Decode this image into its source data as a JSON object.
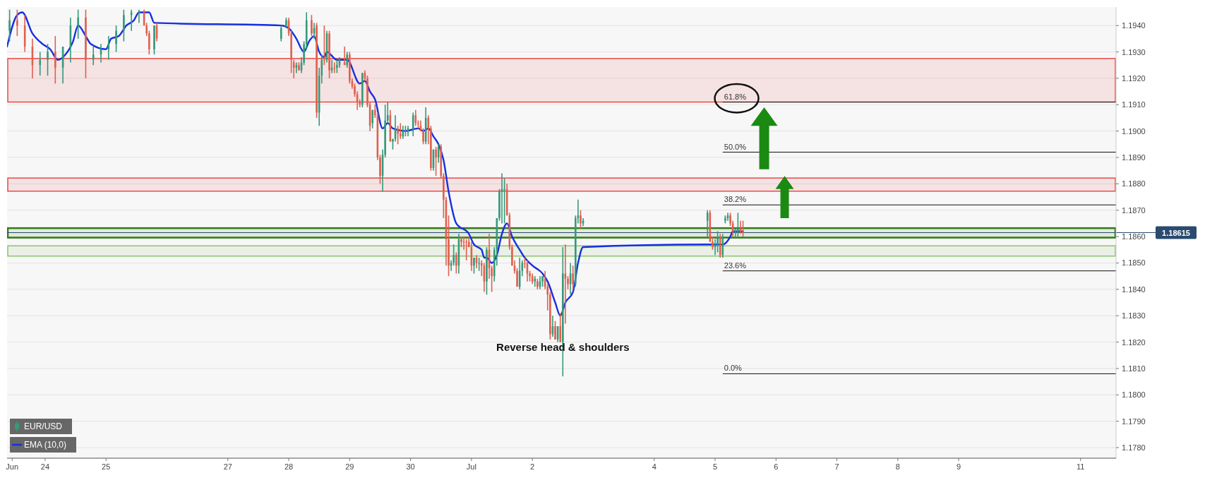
{
  "chart_data": {
    "type": "candlestick",
    "legend": "bottom left",
    "grid": "y",
    "xlim": [
      "--06-23T09:00",
      "--07-11T14:00"
    ],
    "ylim": [
      1.1776,
      1.1947
    ],
    "xticks": [
      {
        "value": "--06-23T11:00",
        "label": "Jun"
      },
      {
        "value": "--06-24",
        "label": "24"
      },
      {
        "value": "--06-25",
        "label": "25"
      },
      {
        "value": "--06-27",
        "label": "27"
      },
      {
        "value": "--06-28",
        "label": "28"
      },
      {
        "value": "--06-29",
        "label": "29"
      },
      {
        "value": "--06-30",
        "label": "30"
      },
      {
        "value": "--07-01",
        "label": "Jul"
      },
      {
        "value": "--07-02",
        "label": "2"
      },
      {
        "value": "--07-04",
        "label": "4"
      },
      {
        "value": "--07-05",
        "label": "5"
      },
      {
        "value": "--07-06",
        "label": "6"
      },
      {
        "value": "--07-07",
        "label": "7"
      },
      {
        "value": "--07-08",
        "label": "8"
      },
      {
        "value": "--07-09",
        "label": "9"
      },
      {
        "value": "--07-11",
        "label": "11"
      }
    ],
    "yticks": [
      {
        "value": 1.178,
        "label": "1.1780"
      },
      {
        "value": 1.179,
        "label": "1.1790"
      },
      {
        "value": 1.18,
        "label": "1.1800"
      },
      {
        "value": 1.181,
        "label": "1.1810"
      },
      {
        "value": 1.182,
        "label": "1.1820"
      },
      {
        "value": 1.183,
        "label": "1.1830"
      },
      {
        "value": 1.184,
        "label": "1.1840"
      },
      {
        "value": 1.185,
        "label": "1.1850"
      },
      {
        "value": 1.186,
        "label": "1.1860"
      },
      {
        "value": 1.187,
        "label": "1.1870"
      },
      {
        "value": 1.188,
        "label": "1.1880"
      },
      {
        "value": 1.189,
        "label": "1.1890"
      },
      {
        "value": 1.19,
        "label": "1.1900"
      },
      {
        "value": 1.191,
        "label": "1.1910"
      },
      {
        "value": 1.192,
        "label": "1.1920"
      },
      {
        "value": 1.193,
        "label": "1.1930"
      },
      {
        "value": 1.194,
        "label": "1.1940"
      }
    ],
    "series": [
      {
        "name": "EUR/USD",
        "colors": [
          "#35997a",
          "#e0604f",
          "#e0604f",
          "#e0604f",
          "#35997a",
          "#35997a",
          "#e0604f",
          "#35997a",
          "#35997a",
          "#35997a",
          "#e0604f",
          "#35997a",
          "#35997a",
          "#35997a",
          "#35997a",
          "#35997a",
          "#35997a",
          "#35997a",
          "#e0604f",
          "#e0604f",
          "#e0604f",
          "#35997a",
          "#e0604f",
          "#35997a",
          "#35997a",
          "#e0604f",
          "#e0604f",
          "#e0604f",
          "#35997a",
          "#e0604f",
          "#35997a",
          "#35997a",
          "#35997a",
          "#e0604f",
          "#35997a",
          "#e0604f",
          "#35997a",
          "#35997a",
          "#e0604f",
          "#35997a",
          "#e0604f",
          "#35997a",
          "#e0604f",
          "#35997a",
          "#35997a",
          "#e0604f",
          "#35997a",
          "#e0604f",
          "#e0604f",
          "#e0604f",
          "#e0604f",
          "#e0604f",
          "#35997a",
          "#e0604f",
          "#e0604f",
          "#e0604f",
          "#35997a",
          "#e0604f",
          "#e0604f",
          "#e0604f",
          "#35997a",
          "#35997a",
          "#35997a",
          "#e0604f",
          "#35997a",
          "#35997a",
          "#e0604f",
          "#e0604f",
          "#35997a",
          "#35997a",
          "#35997a",
          "#35997a",
          "#e0604f",
          "#e0604f",
          "#e0604f",
          "#e0604f",
          "#35997a",
          "#e0604f",
          "#e0604f",
          "#35997a",
          "#e0604f",
          "#35997a",
          "#e0604f",
          "#e0604f",
          "#e0604f",
          "#e0604f",
          "#35997a",
          "#35997a",
          "#e0604f",
          "#35997a",
          "#e0604f",
          "#e0604f",
          "#e0604f",
          "#e0604f",
          "#e0604f",
          "#35997a",
          "#e0604f",
          "#35997a",
          "#e0604f",
          "#e0604f",
          "#35997a",
          "#e0604f",
          "#e0604f",
          "#35997a",
          "#35997a",
          "#35997a",
          "#35997a",
          "#35997a",
          "#e0604f",
          "#e0604f",
          "#e0604f",
          "#e0604f",
          "#e0604f",
          "#35997a",
          "#35997a",
          "#e0604f",
          "#e0604f",
          "#e0604f",
          "#e0604f",
          "#35997a",
          "#e0604f",
          "#35997a",
          "#35997a",
          "#e0604f",
          "#e0604f",
          "#e0604f",
          "#35997a",
          "#e0604f",
          "#35997a",
          "#e0604f",
          "#35997a",
          "#e0604f",
          "#e0604f",
          "#35997a",
          "#e0604f",
          "#35997a",
          "#35997a",
          "#e0604f",
          "#35997a",
          "#35997a",
          "#e0604f",
          "#e0604f",
          "#35997a",
          "#35997a",
          "#e0604f",
          "#35997a",
          "#35997a",
          "#35997a",
          "#e0604f",
          "#e0604f",
          "#35997a",
          "#35997a",
          "#e0604f",
          "#e0604f"
        ],
        "x": [
          "--06-23T10:00",
          "--06-23T13:00",
          "--06-23T16:00",
          "--06-23T19:00",
          "--06-23T22:00",
          "--06-24T01:00",
          "--06-24T04:00",
          "--06-24T07:00",
          "--06-24T10:00",
          "--06-24T13:00",
          "--06-24T16:00",
          "--06-24T19:00",
          "--06-24T22:00",
          "--06-25T01:00",
          "--06-25T04:00",
          "--06-25T07:00",
          "--06-25T10:00",
          "--06-25T13:00",
          "--06-25T15:00",
          "--06-25T16:00",
          "--06-25T17:00",
          "--06-25T19:00",
          "--06-25T20:00",
          "--06-27T21:00",
          "--06-27T23:00",
          "--06-28T00:00",
          "--06-28T01:00",
          "--06-28T02:00",
          "--06-28T03:00",
          "--06-28T04:00",
          "--06-28T05:00",
          "--06-28T06:00",
          "--06-28T07:00",
          "--06-28T09:00",
          "--06-28T10:00",
          "--06-28T11:00",
          "--06-28T12:00",
          "--06-28T13:00",
          "--06-28T14:00",
          "--06-28T15:00",
          "--06-28T16:00",
          "--06-28T17:00",
          "--06-28T18:00",
          "--06-28T19:00",
          "--06-28T20:00",
          "--06-28T22:00",
          "--06-28T23:00",
          "--06-29T00:00",
          "--06-29T01:00",
          "--06-29T02:00",
          "--06-29T03:00",
          "--06-29T04:00",
          "--06-29T05:00",
          "--06-29T06:00",
          "--06-29T07:00",
          "--06-29T08:00",
          "--06-29T09:00",
          "--06-29T10:00",
          "--06-29T11:00",
          "--06-29T12:00",
          "--06-29T13:00",
          "--06-29T14:00",
          "--06-29T15:00",
          "--06-29T16:00",
          "--06-29T17:00",
          "--06-29T18:00",
          "--06-29T19:00",
          "--06-29T20:00",
          "--06-29T21:00",
          "--06-29T22:00",
          "--06-29T23:00",
          "--06-30T01:00",
          "--06-30T02:00",
          "--06-30T03:00",
          "--06-30T04:00",
          "--06-30T05:00",
          "--06-30T06:00",
          "--06-30T07:00",
          "--06-30T08:00",
          "--06-30T09:00",
          "--06-30T10:00",
          "--06-30T11:00",
          "--06-30T12:00",
          "--06-30T13:00",
          "--06-30T14:00",
          "--06-30T15:00",
          "--06-30T16:00",
          "--06-30T17:00",
          "--06-30T18:00",
          "--06-30T19:00",
          "--06-30T20:00",
          "--06-30T21:00",
          "--06-30T22:00",
          "--06-30T23:00",
          "--07-01T00:00",
          "--07-01T01:00",
          "--07-01T02:00",
          "--07-01T03:00",
          "--07-01T04:00",
          "--07-01T05:00",
          "--07-01T06:00",
          "--07-01T07:00",
          "--07-01T08:00",
          "--07-01T09:00",
          "--07-01T10:00",
          "--07-01T11:00",
          "--07-01T12:00",
          "--07-01T13:00",
          "--07-01T14:00",
          "--07-01T15:00",
          "--07-01T16:00",
          "--07-01T17:00",
          "--07-01T18:00",
          "--07-01T19:00",
          "--07-01T20:00",
          "--07-01T21:00",
          "--07-01T22:00",
          "--07-01T23:00",
          "--07-02T00:00",
          "--07-02T01:00",
          "--07-02T02:00",
          "--07-02T03:00",
          "--07-02T04:00",
          "--07-02T05:00",
          "--07-02T06:00",
          "--07-02T07:00",
          "--07-02T08:00",
          "--07-02T09:00",
          "--07-02T10:00",
          "--07-02T11:00",
          "--07-02T12:00",
          "--07-02T13:00",
          "--07-02T14:00",
          "--07-02T15:00",
          "--07-02T16:00",
          "--07-02T17:00",
          "--07-02T18:00",
          "--07-02T19:00",
          "--07-02T20:00",
          "--07-04T21:00",
          "--07-04T22:00",
          "--07-04T23:00",
          "--07-05T00:00",
          "--07-05T01:00",
          "--07-05T02:00",
          "--07-05T03:00",
          "--07-05T04:00",
          "--07-05T05:00",
          "--07-05T06:00",
          "--07-05T07:00",
          "--07-05T08:00",
          "--07-05T09:00",
          "--07-05T10:00",
          "--07-05T11:00"
        ],
        "ohlc": [
          [
            1.1938,
            1.1946,
            1.1934,
            1.1942
          ],
          [
            1.1942,
            1.1946,
            1.1936,
            1.194
          ],
          [
            1.194,
            1.1944,
            1.193,
            1.1932
          ],
          [
            1.1932,
            1.1935,
            1.192,
            1.1925
          ],
          [
            1.1925,
            1.193,
            1.1921,
            1.1927
          ],
          [
            1.1927,
            1.1933,
            1.1921,
            1.193
          ],
          [
            1.193,
            1.1936,
            1.1918,
            1.1924
          ],
          [
            1.1924,
            1.1932,
            1.1918,
            1.1932
          ],
          [
            1.1932,
            1.1943,
            1.1926,
            1.194
          ],
          [
            1.194,
            1.1946,
            1.1935,
            1.1943
          ],
          [
            1.1943,
            1.1946,
            1.192,
            1.1927
          ],
          [
            1.1927,
            1.1932,
            1.1925,
            1.1929
          ],
          [
            1.1929,
            1.1933,
            1.1926,
            1.1931
          ],
          [
            1.1931,
            1.1936,
            1.1927,
            1.1933
          ],
          [
            1.1933,
            1.194,
            1.193,
            1.1938
          ],
          [
            1.1938,
            1.1946,
            1.1934,
            1.1944
          ],
          [
            1.1944,
            1.1946,
            1.1938,
            1.1945
          ],
          [
            1.1945,
            1.1946,
            1.1941,
            1.1945
          ],
          [
            1.1945,
            1.1946,
            1.194,
            1.194
          ],
          [
            1.194,
            1.1941,
            1.1936,
            1.1937
          ],
          [
            1.1937,
            1.1938,
            1.1929,
            1.1931
          ],
          [
            1.1931,
            1.194,
            1.1929,
            1.194
          ],
          [
            1.194,
            1.1941,
            1.1934,
            1.1935
          ],
          [
            1.1935,
            1.194,
            1.1934,
            1.1939
          ],
          [
            1.194,
            1.1943,
            1.1939,
            1.1942
          ],
          [
            1.1942,
            1.1943,
            1.1936,
            1.1937
          ],
          [
            1.1937,
            1.1938,
            1.1922,
            1.1927
          ],
          [
            1.1926,
            1.1927,
            1.192,
            1.1924
          ],
          [
            1.1924,
            1.1926,
            1.1922,
            1.1925
          ],
          [
            1.1925,
            1.1926,
            1.1923,
            1.1923
          ],
          [
            1.1923,
            1.1928,
            1.1922,
            1.1926
          ],
          [
            1.1926,
            1.1934,
            1.1925,
            1.1933
          ],
          [
            1.1933,
            1.1945,
            1.1931,
            1.1942
          ],
          [
            1.1942,
            1.1944,
            1.1936,
            1.1937
          ],
          [
            1.1937,
            1.1941,
            1.1935,
            1.1939
          ],
          [
            1.194,
            1.1941,
            1.1905,
            1.1907
          ],
          [
            1.1907,
            1.1924,
            1.1902,
            1.1921
          ],
          [
            1.1921,
            1.1929,
            1.1918,
            1.1927
          ],
          [
            1.1927,
            1.194,
            1.1925,
            1.1927
          ],
          [
            1.1927,
            1.1938,
            1.1926,
            1.1937
          ],
          [
            1.1937,
            1.1938,
            1.192,
            1.1923
          ],
          [
            1.1923,
            1.1927,
            1.1922,
            1.1924
          ],
          [
            1.1924,
            1.1926,
            1.1922,
            1.1924
          ],
          [
            1.1924,
            1.1927,
            1.1922,
            1.1925
          ],
          [
            1.1925,
            1.1928,
            1.1924,
            1.1927
          ],
          [
            1.1926,
            1.1932,
            1.1925,
            1.1925
          ],
          [
            1.1925,
            1.193,
            1.1924,
            1.1929
          ],
          [
            1.1929,
            1.193,
            1.1918,
            1.1919
          ],
          [
            1.1919,
            1.192,
            1.1916,
            1.1917
          ],
          [
            1.1917,
            1.1918,
            1.1913,
            1.1914
          ],
          [
            1.1914,
            1.1915,
            1.1908,
            1.1911
          ],
          [
            1.1911,
            1.1912,
            1.1909,
            1.191
          ],
          [
            1.191,
            1.1922,
            1.1909,
            1.1922
          ],
          [
            1.1922,
            1.1923,
            1.1919,
            1.192
          ],
          [
            1.192,
            1.1921,
            1.1909,
            1.191
          ],
          [
            1.191,
            1.1911,
            1.19,
            1.1902
          ],
          [
            1.1903,
            1.1908,
            1.1901,
            1.1908
          ],
          [
            1.1908,
            1.191,
            1.1905,
            1.1906
          ],
          [
            1.1906,
            1.1907,
            1.1889,
            1.189
          ],
          [
            1.189,
            1.1891,
            1.188,
            1.1883
          ],
          [
            1.1883,
            1.1893,
            1.1877,
            1.1891
          ],
          [
            1.1891,
            1.191,
            1.189,
            1.1904
          ],
          [
            1.1904,
            1.1911,
            1.1903,
            1.1906
          ],
          [
            1.1906,
            1.1908,
            1.1896,
            1.1896
          ],
          [
            1.1896,
            1.1897,
            1.1893,
            1.1897
          ],
          [
            1.1897,
            1.1906,
            1.1896,
            1.1901
          ],
          [
            1.1901,
            1.1902,
            1.1895,
            1.1899
          ],
          [
            1.1899,
            1.1903,
            1.1897,
            1.1898
          ],
          [
            1.1898,
            1.1902,
            1.1897,
            1.19
          ],
          [
            1.19,
            1.1902,
            1.1898,
            1.19
          ],
          [
            1.19,
            1.1902,
            1.1898,
            1.1901
          ],
          [
            1.1901,
            1.1907,
            1.1898,
            1.1906
          ],
          [
            1.1906,
            1.1908,
            1.1902,
            1.1903
          ],
          [
            1.1903,
            1.1904,
            1.1901,
            1.1903
          ],
          [
            1.1902,
            1.1904,
            1.19,
            1.19
          ],
          [
            1.19,
            1.1901,
            1.1895,
            1.1896
          ],
          [
            1.1896,
            1.1909,
            1.1895,
            1.1905
          ],
          [
            1.1905,
            1.1906,
            1.1895,
            1.1901
          ],
          [
            1.1901,
            1.1902,
            1.1885,
            1.1886
          ],
          [
            1.1886,
            1.1893,
            1.1885,
            1.1893
          ],
          [
            1.1893,
            1.1894,
            1.1883,
            1.189
          ],
          [
            1.189,
            1.1895,
            1.1888,
            1.1894
          ],
          [
            1.1894,
            1.1895,
            1.1882,
            1.1883
          ],
          [
            1.1883,
            1.1884,
            1.1867,
            1.1874
          ],
          [
            1.1874,
            1.1875,
            1.1849,
            1.1859
          ],
          [
            1.1859,
            1.1868,
            1.1845,
            1.1849
          ],
          [
            1.1849,
            1.1851,
            1.1847,
            1.185
          ],
          [
            1.185,
            1.1857,
            1.1849,
            1.1853
          ],
          [
            1.1853,
            1.1854,
            1.1846,
            1.1849
          ],
          [
            1.1849,
            1.1861,
            1.1846,
            1.1859
          ],
          [
            1.1859,
            1.186,
            1.1856,
            1.1858
          ],
          [
            1.1858,
            1.186,
            1.1855,
            1.1858
          ],
          [
            1.1858,
            1.1859,
            1.1851,
            1.1858
          ],
          [
            1.1858,
            1.186,
            1.1856,
            1.1856
          ],
          [
            1.1856,
            1.1858,
            1.1847,
            1.1849
          ],
          [
            1.1849,
            1.1852,
            1.1846,
            1.1852
          ],
          [
            1.1852,
            1.1853,
            1.1848,
            1.185
          ],
          [
            1.185,
            1.1852,
            1.1847,
            1.185
          ],
          [
            1.185,
            1.1851,
            1.1845,
            1.1849
          ],
          [
            1.1849,
            1.185,
            1.1839,
            1.1843
          ],
          [
            1.1843,
            1.1856,
            1.1838,
            1.1855
          ],
          [
            1.1855,
            1.1861,
            1.1844,
            1.1848
          ],
          [
            1.1848,
            1.1849,
            1.1839,
            1.1845
          ],
          [
            1.1845,
            1.1856,
            1.1843,
            1.1855
          ],
          [
            1.1855,
            1.1867,
            1.1849,
            1.1867
          ],
          [
            1.1867,
            1.1878,
            1.1866,
            1.1877
          ],
          [
            1.1877,
            1.1884,
            1.1865,
            1.1878
          ],
          [
            1.1878,
            1.1882,
            1.1865,
            1.1878
          ],
          [
            1.1878,
            1.188,
            1.1868,
            1.1868
          ],
          [
            1.1868,
            1.1869,
            1.1855,
            1.1856
          ],
          [
            1.1856,
            1.1857,
            1.1849,
            1.1849
          ],
          [
            1.1849,
            1.1851,
            1.1846,
            1.1847
          ],
          [
            1.1847,
            1.1848,
            1.1841,
            1.1841
          ],
          [
            1.1841,
            1.1852,
            1.184,
            1.1847
          ],
          [
            1.1847,
            1.1851,
            1.1845,
            1.185
          ],
          [
            1.185,
            1.1852,
            1.1848,
            1.185
          ],
          [
            1.185,
            1.1851,
            1.1843,
            1.1846
          ],
          [
            1.1846,
            1.1847,
            1.1843,
            1.1845
          ],
          [
            1.1845,
            1.1846,
            1.1842,
            1.1843
          ],
          [
            1.1843,
            1.1845,
            1.1841,
            1.1844
          ],
          [
            1.1843,
            1.1844,
            1.184,
            1.1841
          ],
          [
            1.1841,
            1.1845,
            1.184,
            1.1843
          ],
          [
            1.1843,
            1.1845,
            1.1841,
            1.1845
          ],
          [
            1.1844,
            1.1847,
            1.184,
            1.1841
          ],
          [
            1.1841,
            1.1842,
            1.1832,
            1.1838
          ],
          [
            1.1838,
            1.1839,
            1.1821,
            1.1823
          ],
          [
            1.1823,
            1.183,
            1.1822,
            1.1826
          ],
          [
            1.1826,
            1.1828,
            1.1821,
            1.1821
          ],
          [
            1.1821,
            1.1826,
            1.182,
            1.1826
          ],
          [
            1.1826,
            1.1831,
            1.182,
            1.182
          ],
          [
            1.182,
            1.1856,
            1.1807,
            1.1846
          ],
          [
            1.1846,
            1.1857,
            1.1827,
            1.1844
          ],
          [
            1.1844,
            1.1845,
            1.184,
            1.1842
          ],
          [
            1.1842,
            1.185,
            1.1838,
            1.1846
          ],
          [
            1.1846,
            1.1849,
            1.184,
            1.1842
          ],
          [
            1.1842,
            1.1868,
            1.1841,
            1.1867
          ],
          [
            1.1867,
            1.1874,
            1.1865,
            1.1868
          ],
          [
            1.1868,
            1.187,
            1.1863,
            1.1865
          ],
          [
            1.1865,
            1.1867,
            1.1864,
            1.1866
          ],
          [
            1.1866,
            1.187,
            1.186,
            1.1869
          ],
          [
            1.1869,
            1.187,
            1.1858,
            1.1858
          ],
          [
            1.1858,
            1.186,
            1.1855,
            1.1856
          ],
          [
            1.1856,
            1.1859,
            1.1853,
            1.1857
          ],
          [
            1.1857,
            1.1862,
            1.1854,
            1.186
          ],
          [
            1.186,
            1.1861,
            1.1852,
            1.1853
          ],
          [
            1.1853,
            1.1861,
            1.1852,
            1.186
          ],
          [
            1.1866,
            1.1868,
            1.1865,
            1.1867
          ],
          [
            1.1867,
            1.1869,
            1.1866,
            1.1868
          ],
          [
            1.1868,
            1.1869,
            1.1864,
            1.1865
          ],
          [
            1.1865,
            1.1866,
            1.186,
            1.1862
          ],
          [
            1.1862,
            1.1863,
            1.186,
            1.1862
          ],
          [
            1.1862,
            1.1869,
            1.186,
            1.1863
          ],
          [
            1.1863,
            1.1866,
            1.1861,
            1.1862
          ],
          [
            1.1862,
            1.1866,
            1.186,
            1.18615
          ]
        ]
      },
      {
        "name": "EMA (10,0)",
        "type": "line",
        "color": "#1530e0",
        "x": [
          "--06-23T09:00",
          "--06-23T13:00",
          "--06-23T15:00",
          "--06-23T19:00",
          "--06-23T23:00",
          "--06-24T02:00",
          "--06-24T05:00",
          "--06-24T08:00",
          "--06-24T11:00",
          "--06-24T13:00",
          "--06-24T16:00",
          "--06-24T18:00",
          "--06-25T00:00",
          "--06-25T02:00",
          "--06-25T05:00",
          "--06-25T08:00",
          "--06-25T11:00",
          "--06-25T13:00",
          "--06-25T17:00",
          "--06-25T19:00",
          "--06-27T21:00",
          "--06-28T00:00",
          "--06-28T03:00",
          "--06-28T06:00",
          "--06-28T08:00",
          "--06-28T10:00",
          "--06-28T12:00",
          "--06-28T14:00",
          "--06-28T15:00",
          "--06-28T19:00",
          "--06-28T23:00",
          "--06-29T04:00",
          "--06-29T06:00",
          "--06-29T08:00",
          "--06-29T10:00",
          "--06-29T13:00",
          "--06-29T15:00",
          "--06-29T17:00",
          "--06-29T22:00",
          "--06-30T03:00",
          "--06-30T05:00",
          "--06-30T07:00",
          "--06-30T09:00",
          "--06-30T11:00",
          "--06-30T13:00",
          "--06-30T15:00",
          "--06-30T18:00",
          "--06-30T23:00",
          "--07-01T01:00",
          "--07-01T04:00",
          "--07-01T05:00",
          "--07-01T06:00",
          "--07-01T08:00",
          "--07-01T10:00",
          "--07-01T12:00",
          "--07-01T14:00",
          "--07-01T16:00",
          "--07-01T19:00",
          "--07-01T21:00",
          "--07-02T00:00",
          "--07-02T04:00",
          "--07-02T06:00",
          "--07-02T09:00",
          "--07-02T11:00",
          "--07-02T13:00",
          "--07-02T16:00",
          "--07-02T18:00",
          "--07-02T20:00",
          "--07-04T21:00",
          "--07-04T23:00",
          "--07-05T02:00",
          "--07-05T03:00",
          "--07-05T06:00",
          "--07-05T07:00",
          "--07-05T11:00"
        ],
        "values": [
          1.1932,
          1.1944,
          1.1945,
          1.1937,
          1.1933,
          1.1931,
          1.1927,
          1.1929,
          1.1934,
          1.194,
          1.1936,
          1.1933,
          1.1931,
          1.1935,
          1.1936,
          1.194,
          1.1942,
          1.1945,
          1.1945,
          1.1941,
          1.194,
          1.1939,
          1.1935,
          1.193,
          1.1934,
          1.1936,
          1.193,
          1.1928,
          1.193,
          1.1927,
          1.1927,
          1.1918,
          1.1919,
          1.1915,
          1.1912,
          1.1901,
          1.1903,
          1.1901,
          1.19,
          1.1901,
          1.19,
          1.1901,
          1.1898,
          1.1895,
          1.1889,
          1.1877,
          1.1865,
          1.1861,
          1.1857,
          1.1855,
          1.1852,
          1.1852,
          1.185,
          1.1853,
          1.1861,
          1.1865,
          1.186,
          1.1855,
          1.1852,
          1.1849,
          1.1846,
          1.1843,
          1.1835,
          1.183,
          1.1835,
          1.1839,
          1.185,
          1.1856,
          1.1857,
          1.1857,
          1.1857,
          1.1857,
          1.186,
          1.1862,
          1.1862
        ]
      }
    ],
    "ref_lines": [
      {
        "axis": "y",
        "value": 1.18615,
        "label": "1.18615",
        "color": "#2a4a6e"
      },
      {
        "axis": "y",
        "value": 1.1911,
        "color": "#111111"
      },
      {
        "axis": "y",
        "value": 1.1892,
        "color": "#111111"
      },
      {
        "axis": "y",
        "value": 1.1872,
        "color": "#111111"
      },
      {
        "axis": "y",
        "value": 1.1847,
        "color": "#111111"
      },
      {
        "axis": "y",
        "value": 1.1808,
        "color": "#111111"
      }
    ],
    "bands": [
      {
        "axis": "y",
        "from": 1.1911,
        "to": 1.19275,
        "color": "#e8332e"
      },
      {
        "axis": "y",
        "from": 1.18772,
        "to": 1.18822,
        "color": "#e8332e"
      },
      {
        "axis": "y",
        "from": 1.18596,
        "to": 1.18632,
        "color": "#2f7d12"
      },
      {
        "axis": "y",
        "from": 1.18526,
        "to": 1.18565,
        "color": "#7cbd5a"
      }
    ],
    "annotations": [
      {
        "text": "Reverse head & shoulders",
        "x": "--07-02T12:00",
        "y": 1.1818
      },
      {
        "text": "61.8%",
        "x": "--07-05T03:00",
        "y": 1.1911
      },
      {
        "text": "50.0%",
        "x": "--07-05T03:00",
        "y": 1.1892
      },
      {
        "text": "38.2%",
        "x": "--07-05T03:00",
        "y": 1.1872
      },
      {
        "text": "23.6%",
        "x": "--07-05T03:00",
        "y": 1.1847
      },
      {
        "text": "0.0%",
        "x": "--07-05T03:00",
        "y": 1.1808
      }
    ]
  }
}
